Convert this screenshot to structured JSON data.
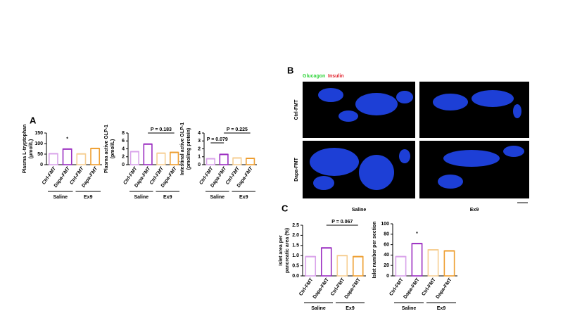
{
  "panels": {
    "a": "A",
    "b": "B",
    "c": "C"
  },
  "images": {
    "stain_glucagon": "Glucagon",
    "stain_insulin": "Insulin",
    "rows": [
      "Ctrl-FMT",
      "Dapa-FMT"
    ],
    "columns": [
      "Saline",
      "Ex9"
    ]
  },
  "chart_data": [
    {
      "type": "bar",
      "y_label": [
        "Plasma L-tryptophan",
        "(μmol/L)"
      ],
      "categories": [
        "Ctrl-FMT",
        "Dapa-FMT",
        "Ctrl-FMT",
        "Dapa-FMT"
      ],
      "groups": [
        "Saline",
        "Ex9"
      ],
      "values": [
        52,
        74,
        51,
        77
      ],
      "colors": [
        "#d9a3ea",
        "#9b2fc1",
        "#f6cf94",
        "#ee9f32"
      ],
      "ylim": [
        0,
        150
      ],
      "yticks": [
        0,
        50,
        100,
        150
      ],
      "significance": [
        null,
        "*",
        null,
        null
      ],
      "comparisons": []
    },
    {
      "type": "bar",
      "y_label": [
        "Plasma active GLP-1",
        "(pmol/L)"
      ],
      "categories": [
        "Ctrl-FMT",
        "Dapa-FMT",
        "Ctrl-FMT",
        "Dapa-FMT"
      ],
      "groups": [
        "Saline",
        "Ex9"
      ],
      "values": [
        3.3,
        5.2,
        2.9,
        3.1
      ],
      "colors": [
        "#d9a3ea",
        "#9b2fc1",
        "#f6cf94",
        "#ee9f32"
      ],
      "ylim": [
        0,
        8
      ],
      "yticks": [
        0,
        2,
        4,
        6,
        8
      ],
      "significance": [
        null,
        null,
        null,
        null
      ],
      "comparisons": [
        {
          "bars": [
            1,
            3
          ],
          "label": "P = 0.183"
        }
      ]
    },
    {
      "type": "bar",
      "y_label": [
        "Intestinal active GLP-1",
        "(pmol/mg protein)"
      ],
      "categories": [
        "Ctrl-FMT",
        "Dapa-FMT",
        "Ctrl-FMT",
        "Dapa-FMT"
      ],
      "groups": [
        "Saline",
        "Ex9"
      ],
      "values": [
        0.75,
        1.3,
        0.85,
        0.8
      ],
      "colors": [
        "#d9a3ea",
        "#9b2fc1",
        "#f6cf94",
        "#ee9f32"
      ],
      "ylim": [
        0,
        4
      ],
      "yticks": [
        0,
        1,
        2,
        3,
        4
      ],
      "significance": [
        null,
        null,
        null,
        null
      ],
      "comparisons": [
        {
          "bars": [
            0,
            1
          ],
          "label": "P = 0.079"
        },
        {
          "bars": [
            1,
            3
          ],
          "label": "P = 0.225"
        }
      ]
    },
    {
      "type": "bar",
      "y_label": [
        "Islet area per",
        "pancreatic area (%)"
      ],
      "categories": [
        "Ctrl-FMT",
        "Dapa-FMT",
        "Ctrl-FMT",
        "Dapa-FMT"
      ],
      "groups": [
        "Saline",
        "Ex9"
      ],
      "values": [
        0.95,
        1.38,
        1.0,
        0.95
      ],
      "colors": [
        "#d9a3ea",
        "#9b2fc1",
        "#f6cf94",
        "#ee9f32"
      ],
      "ylim": [
        0,
        2.5
      ],
      "yticks": [
        {
          "value": 0,
          "label": "0.0"
        },
        0.5,
        {
          "value": 1,
          "label": "1.0"
        },
        1.5,
        {
          "value": 2,
          "label": "2.0"
        },
        2.5
      ],
      "significance": [
        null,
        null,
        null,
        null
      ],
      "comparisons": [
        {
          "bars": [
            1,
            3
          ],
          "label": "P = 0.067"
        }
      ]
    },
    {
      "type": "bar",
      "y_label": [
        "Islet number per section"
      ],
      "categories": [
        "Ctrl-FMT",
        "Dapa-FMT",
        "Ctrl-FMT",
        "Dapa-FMT"
      ],
      "groups": [
        "Saline",
        "Ex9"
      ],
      "values": [
        37,
        62,
        50,
        48
      ],
      "colors": [
        "#d9a3ea",
        "#9b2fc1",
        "#f6cf94",
        "#ee9f32"
      ],
      "ylim": [
        0,
        100
      ],
      "yticks": [
        0,
        20,
        40,
        60,
        80,
        100
      ],
      "significance": [
        null,
        "*",
        null,
        null
      ],
      "comparisons": []
    }
  ]
}
